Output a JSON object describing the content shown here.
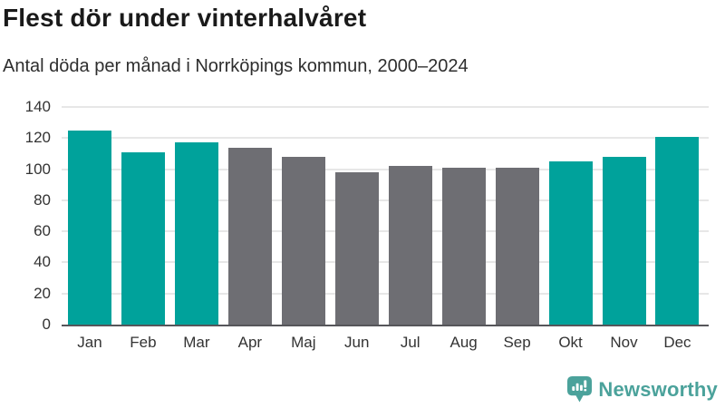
{
  "title": "Flest dör under vinterhalvåret",
  "subtitle": "Antal döda per månad i Norrköpings kommun, 2000–2024",
  "chart_data": {
    "type": "bar",
    "title": "Flest dör under vinterhalvåret",
    "subtitle": "Antal döda per månad i Norrköpings kommun, 2000–2024",
    "categories": [
      "Jan",
      "Feb",
      "Mar",
      "Apr",
      "Maj",
      "Jun",
      "Jul",
      "Aug",
      "Sep",
      "Okt",
      "Nov",
      "Dec"
    ],
    "values": [
      125,
      111,
      117,
      114,
      108,
      98,
      102,
      101,
      101,
      105,
      108,
      121
    ],
    "bar_colors": [
      "#00A29B",
      "#00A29B",
      "#00A29B",
      "#6E6E73",
      "#6E6E73",
      "#6E6E73",
      "#6E6E73",
      "#6E6E73",
      "#6E6E73",
      "#00A29B",
      "#00A29B",
      "#00A29B"
    ],
    "highlight_color": "#00A29B",
    "neutral_color": "#6E6E73",
    "xlabel": "",
    "ylabel": "",
    "ylim": [
      0,
      140
    ],
    "yticks": [
      0,
      20,
      40,
      60,
      80,
      100,
      120,
      140
    ],
    "grid": true,
    "legend": "none"
  },
  "brand": {
    "name": "Newsworthy",
    "color": "#4BA29B"
  }
}
